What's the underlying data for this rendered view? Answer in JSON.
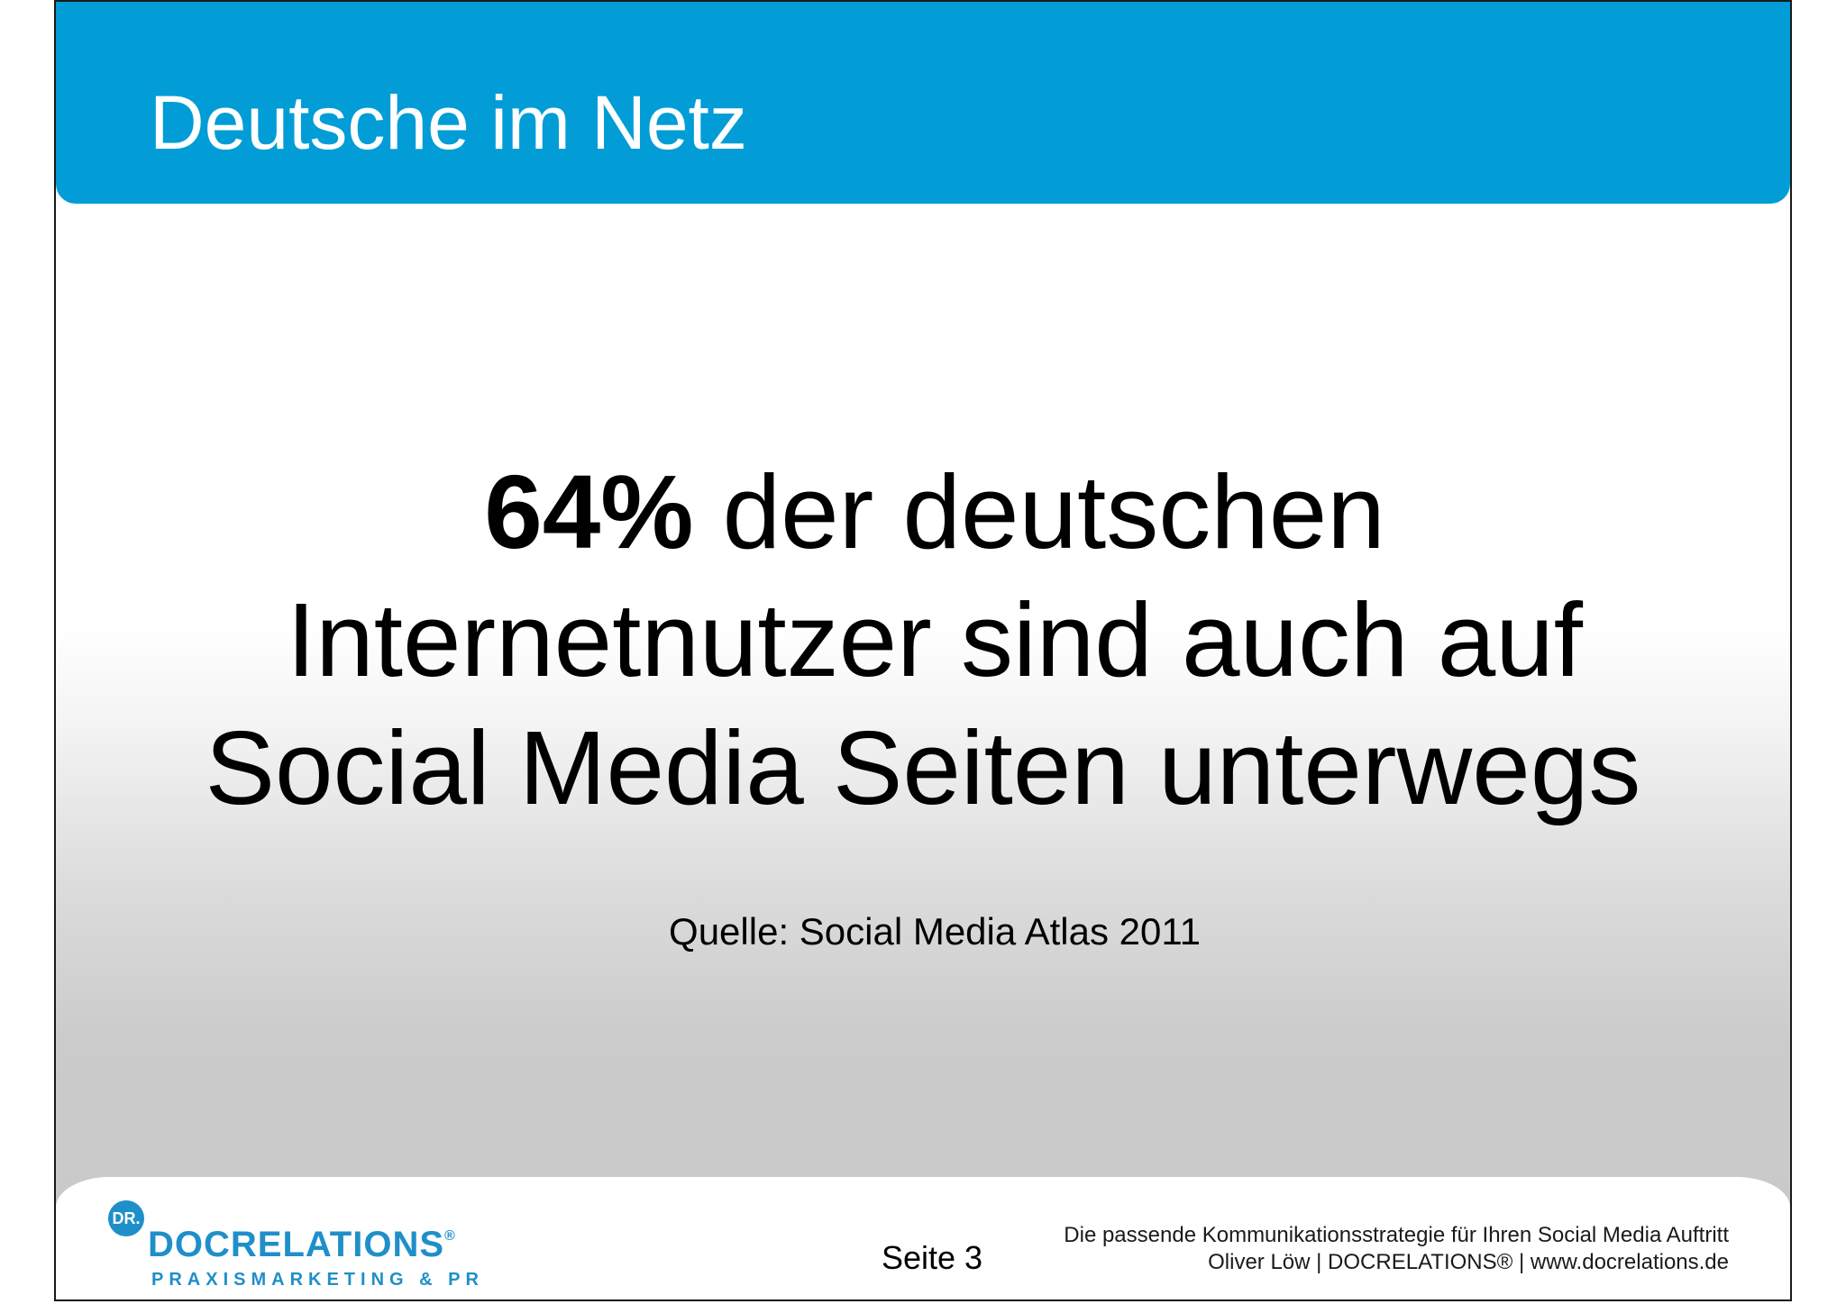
{
  "header": {
    "title": "Deutsche im Netz"
  },
  "statement": {
    "percent": "64%",
    "line1_rest": " der deutschen",
    "line2": "Internetnutzer sind auch auf",
    "line3": "Social Media Seiten unterwegs"
  },
  "source": "Quelle: Social Media Atlas 2011",
  "footer": {
    "page": "Seite 3",
    "tagline_line1": "Die passende Kommunikationsstrategie für Ihren Social Media Auftritt",
    "tagline_line2": "Oliver Löw | DOCRELATIONS® | www.docrelations.de"
  },
  "logo": {
    "mark": "DR.",
    "name": "DOCRELATIONS",
    "reg": "®",
    "subtitle": "PRAXISMARKETING & PR"
  },
  "colors": {
    "header": "#029dd6",
    "logo": "#1f8fc9"
  }
}
